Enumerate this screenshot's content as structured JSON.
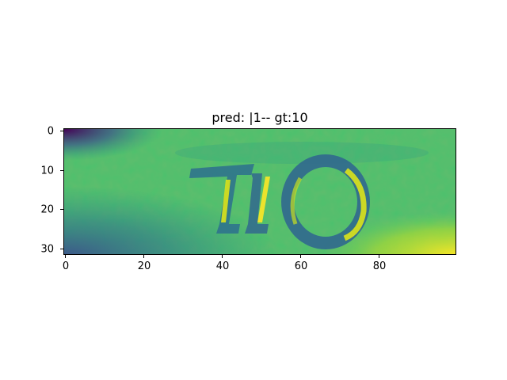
{
  "figure": {
    "title": "pred: |1-- gt:10"
  },
  "image": {
    "depicted_text": "10",
    "colormap": "viridis"
  },
  "axes": {
    "x_ticks": [
      "0",
      "20",
      "40",
      "60",
      "80"
    ],
    "y_ticks": [
      "0",
      "10",
      "20",
      "30"
    ]
  },
  "colors": {
    "dark": "#440154",
    "mid": "#21908d",
    "green": "#5ec962",
    "yellow": "#fde725"
  }
}
